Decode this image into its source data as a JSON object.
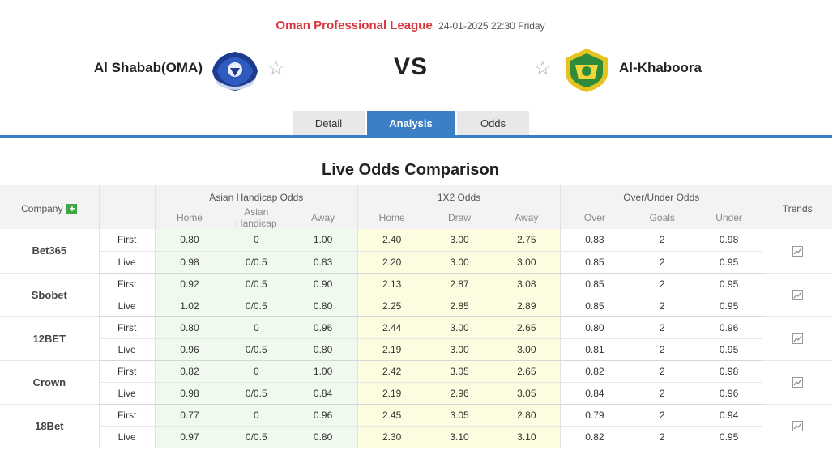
{
  "match": {
    "league": "Oman Professional League",
    "datetime": "24-01-2025 22:30 Friday",
    "home": "Al Shabab(OMA)",
    "away": "Al-Khaboora",
    "vs": "VS"
  },
  "tabs": [
    {
      "label": "Detail",
      "active": false
    },
    {
      "label": "Analysis",
      "active": true
    },
    {
      "label": "Odds",
      "active": false
    }
  ],
  "section_title": "Live Odds Comparison",
  "table": {
    "company_header": "Company",
    "trends_header": "Trends",
    "groups": [
      "Asian Handicap Odds",
      "1X2 Odds",
      "Over/Under Odds"
    ],
    "sub_headers": [
      "Home",
      "Asian Handicap",
      "Away",
      "Home",
      "Draw",
      "Away",
      "Over",
      "Goals",
      "Under"
    ],
    "companies": [
      {
        "name": "Bet365",
        "rows": [
          {
            "type": "First",
            "values": [
              "0.80",
              "0",
              "1.00",
              "2.40",
              "3.00",
              "2.75",
              "0.83",
              "2",
              "0.98"
            ]
          },
          {
            "type": "Live",
            "values": [
              "0.98",
              "0/0.5",
              "0.83",
              "2.20",
              "3.00",
              "3.00",
              "0.85",
              "2",
              "0.95"
            ]
          }
        ]
      },
      {
        "name": "Sbobet",
        "rows": [
          {
            "type": "First",
            "values": [
              "0.92",
              "0/0.5",
              "0.90",
              "2.13",
              "2.87",
              "3.08",
              "0.85",
              "2",
              "0.95"
            ]
          },
          {
            "type": "Live",
            "values": [
              "1.02",
              "0/0.5",
              "0.80",
              "2.25",
              "2.85",
              "2.89",
              "0.85",
              "2",
              "0.95"
            ]
          }
        ]
      },
      {
        "name": "12BET",
        "rows": [
          {
            "type": "First",
            "values": [
              "0.80",
              "0",
              "0.96",
              "2.44",
              "3.00",
              "2.65",
              "0.80",
              "2",
              "0.96"
            ]
          },
          {
            "type": "Live",
            "values": [
              "0.96",
              "0/0.5",
              "0.80",
              "2.19",
              "3.00",
              "3.00",
              "0.81",
              "2",
              "0.95"
            ]
          }
        ]
      },
      {
        "name": "Crown",
        "rows": [
          {
            "type": "First",
            "values": [
              "0.82",
              "0",
              "1.00",
              "2.42",
              "3.05",
              "2.65",
              "0.82",
              "2",
              "0.98"
            ]
          },
          {
            "type": "Live",
            "values": [
              "0.98",
              "0/0.5",
              "0.84",
              "2.19",
              "2.96",
              "3.05",
              "0.84",
              "2",
              "0.96"
            ]
          }
        ]
      },
      {
        "name": "18Bet",
        "rows": [
          {
            "type": "First",
            "values": [
              "0.77",
              "0",
              "0.96",
              "2.45",
              "3.05",
              "2.80",
              "0.79",
              "2",
              "0.94"
            ]
          },
          {
            "type": "Live",
            "values": [
              "0.97",
              "0/0.5",
              "0.80",
              "2.30",
              "3.10",
              "3.10",
              "0.82",
              "2",
              "0.95"
            ]
          }
        ]
      }
    ]
  },
  "icons": {
    "favorite": "star-outline-icon",
    "add": "plus-icon",
    "trend": "chart-icon"
  },
  "colors": {
    "league": "#d8343c",
    "accent": "#3b7fc4",
    "ah_bg": "#f0f9ee",
    "x12_bg": "#fefce0"
  }
}
